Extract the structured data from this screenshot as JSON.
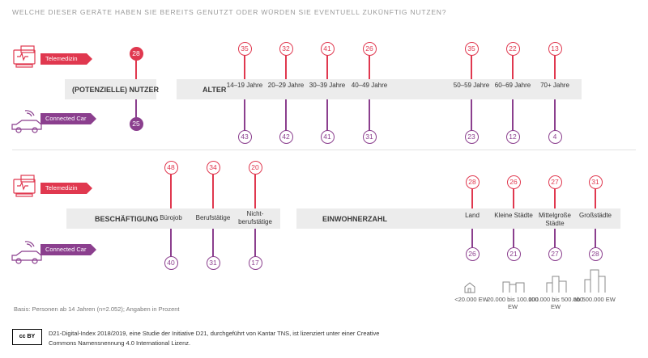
{
  "header": "WELCHE DIESER GERÄTE HABEN SIE BEREITS GENUTZT ODER WÜRDEN SIE EVENTUELL ZUKÜNFTIG NUTZEN?",
  "legend": {
    "telemedizin": "Telemedizin",
    "connected_car": "Connected Car"
  },
  "colors": {
    "telemedizin": "#e0384f",
    "connected_car": "#8b3f8e",
    "band": "#ececec"
  },
  "icons": {
    "telemedizin": "telemedicine-icon",
    "connected_car": "car-icon",
    "alter": "heartbeat-icon",
    "beschaeftigung": "briefcase-icon",
    "einwohnerzahl": "people-icon",
    "city_size": "buildings-icon",
    "license": "cc-by-icon"
  },
  "chart_data": [
    {
      "type": "dot-plot",
      "section": "nutzer",
      "band_label": "(POTENZIELLE) NUTZER",
      "categories": [
        ""
      ],
      "series": [
        {
          "name": "Telemedizin",
          "values": [
            28
          ]
        },
        {
          "name": "Connected Car",
          "values": [
            25
          ]
        }
      ]
    },
    {
      "type": "dot-plot",
      "section": "alter",
      "band_label": "ALTER",
      "categories": [
        "14–19 Jahre",
        "20–29 Jahre",
        "30–39 Jahre",
        "40–49 Jahre",
        "50–59 Jahre",
        "60–69 Jahre",
        "70+ Jahre"
      ],
      "series": [
        {
          "name": "Telemedizin",
          "values": [
            35,
            32,
            41,
            26,
            35,
            22,
            13
          ]
        },
        {
          "name": "Connected Car",
          "values": [
            43,
            42,
            41,
            31,
            23,
            12,
            4
          ]
        }
      ]
    },
    {
      "type": "dot-plot",
      "section": "beschaeftigung",
      "band_label": "BESCHÄFTIGUNG",
      "categories": [
        "Bürojob",
        "Berufstätige",
        "Nicht-berufstätige"
      ],
      "series": [
        {
          "name": "Telemedizin",
          "values": [
            48,
            34,
            20
          ]
        },
        {
          "name": "Connected Car",
          "values": [
            40,
            31,
            17
          ]
        }
      ]
    },
    {
      "type": "dot-plot",
      "section": "einwohnerzahl",
      "band_label": "EINWOHNERZAHL",
      "categories": [
        "Land",
        "Kleine Städte",
        "Mittelgroße Städte",
        "Großstädte"
      ],
      "series": [
        {
          "name": "Telemedizin",
          "values": [
            28,
            26,
            27,
            31
          ]
        },
        {
          "name": "Connected Car",
          "values": [
            26,
            21,
            27,
            28
          ]
        }
      ]
    }
  ],
  "ew_labels": [
    "<20.000 EW",
    "20.000 bis 100.000 EW",
    "100.000 bis 500.000 EW",
    "ab 500.000 EW"
  ],
  "basis": "Basis: Personen ab 14 Jahren (n=2.052); Angaben in Prozent",
  "license": "D21-Digital-Index 2018/2019, eine Studie der Initiative D21, durchgeführt von Kantar TNS, ist lizenziert unter einer Creative Commons Namensnennung 4.0 International Lizenz.",
  "license_badge": "cc BY"
}
